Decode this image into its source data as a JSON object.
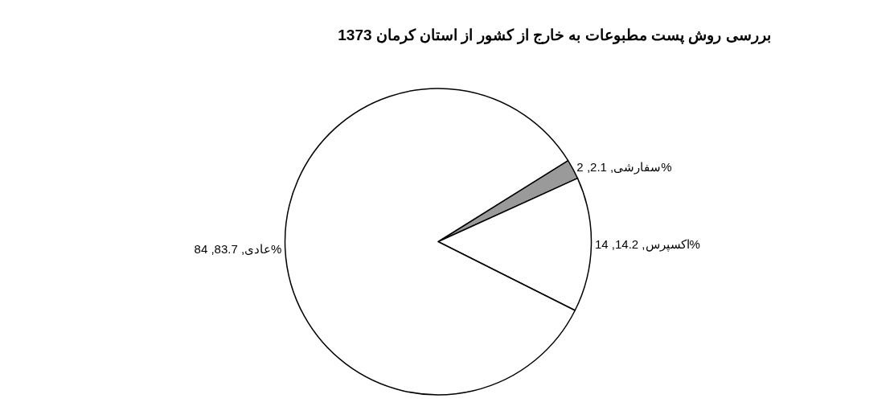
{
  "chart_data": {
    "type": "pie",
    "title": "بررسی روش پست مطبوعات به خارج از کشور از استان کرمان 1373",
    "categories": [
      "سفارشی",
      "اکسپرس",
      "عادی"
    ],
    "values": [
      2.1,
      14.2,
      83.7
    ],
    "value_labels": [
      ", 2.1, 2%",
      ", 14.2, 14%",
      ", 83.7, 84%"
    ],
    "colors": [
      "#9a9a9a",
      "#ffffff",
      "#ffffff"
    ],
    "legend": false
  }
}
